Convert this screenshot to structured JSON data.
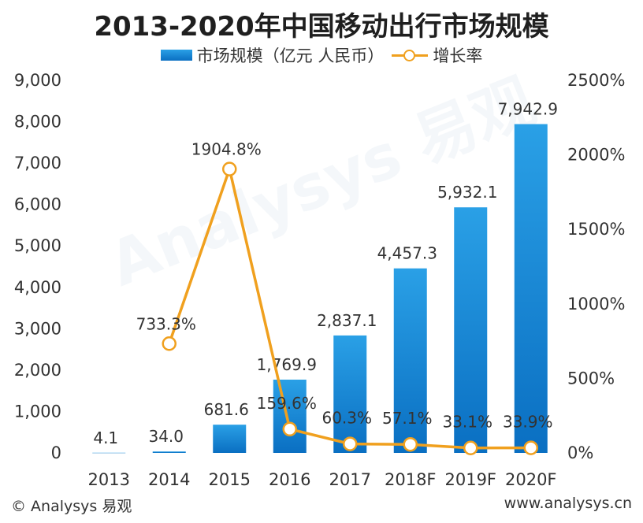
{
  "chart_data": {
    "type": "bar",
    "title": "2013-2020年中国移动出行市场规模",
    "categories": [
      "2013",
      "2014",
      "2015",
      "2016",
      "2017",
      "2018F",
      "2019F",
      "2020F"
    ],
    "series": [
      {
        "name": "市场规模（亿元 人民币）",
        "type": "bar",
        "axis": "left",
        "values": [
          4.1,
          34.0,
          681.6,
          1769.9,
          2837.1,
          4457.3,
          5932.1,
          7942.9
        ],
        "labels": [
          "4.1",
          "34.0",
          "681.6",
          "1,769.9",
          "2,837.1",
          "4,457.3",
          "5,932.1",
          "7,942.9"
        ],
        "color": "#1a86d6"
      },
      {
        "name": "增长率",
        "type": "line",
        "axis": "right",
        "values": [
          null,
          733.3,
          1904.8,
          159.6,
          60.3,
          57.1,
          33.1,
          33.9
        ],
        "labels": [
          "",
          "733.3%",
          "1904.8%",
          "159.6%",
          "60.3%",
          "57.1%",
          "33.1%",
          "33.9%"
        ],
        "color": "#f0a01e"
      }
    ],
    "y_left": {
      "range": [
        0,
        9000
      ],
      "ticks": [
        "0",
        "1,000",
        "2,000",
        "3,000",
        "4,000",
        "5,000",
        "6,000",
        "7,000",
        "8,000",
        "9,000"
      ]
    },
    "y_right": {
      "range": [
        0,
        2500
      ],
      "ticks": [
        "0%",
        "500%",
        "1000%",
        "1500%",
        "2000%",
        "2500%"
      ]
    },
    "grid": false,
    "legend_position": "top-center"
  },
  "legend": {
    "bar_label": "市场规模（亿元 人民币）",
    "line_label": "增长率"
  },
  "footer": {
    "left": "© Analysys 易观",
    "right": "www.analysys.cn"
  },
  "watermark": "Analysys 易观",
  "colors": {
    "bar_top": "#2aa0e6",
    "bar_bottom": "#0a6fc2",
    "line": "#f0a01e"
  }
}
